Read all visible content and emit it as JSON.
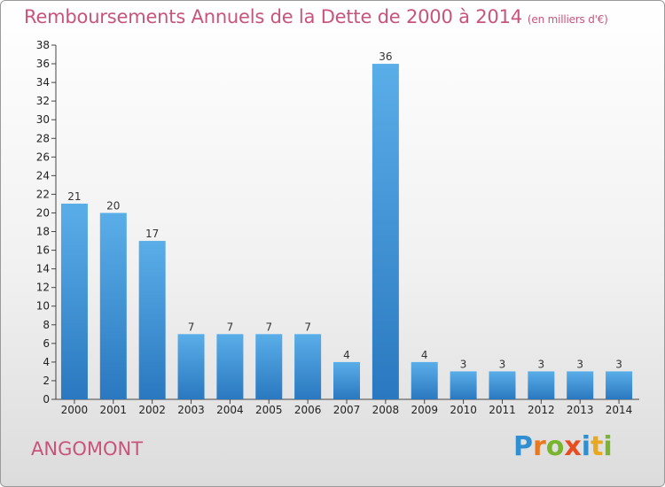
{
  "title": "Remboursements Annuels de la Dette de 2000 à 2014",
  "unit_note": "(en milliers d'€)",
  "commune": "ANGOMONT",
  "logo": {
    "text": "Proxiti",
    "letters": [
      {
        "ch": "P",
        "color": "#2f8fd0"
      },
      {
        "ch": "r",
        "color": "#e8781f"
      },
      {
        "ch": "o",
        "color": "#79b52e"
      },
      {
        "ch": "x",
        "color": "#e84c1f"
      },
      {
        "ch": "i",
        "color": "#2f8fd0"
      },
      {
        "ch": "t",
        "color": "#e8a81f"
      },
      {
        "ch": "i",
        "color": "#79b52e"
      }
    ]
  },
  "chart_data": {
    "type": "bar",
    "categories": [
      "2000",
      "2001",
      "2002",
      "2003",
      "2004",
      "2005",
      "2006",
      "2007",
      "2008",
      "2009",
      "2010",
      "2011",
      "2012",
      "2013",
      "2014"
    ],
    "values": [
      21,
      20,
      17,
      7,
      7,
      7,
      7,
      4,
      36,
      4,
      3,
      3,
      3,
      3,
      3
    ],
    "data_labels": [
      "21",
      "20",
      "17",
      "7",
      "7",
      "7",
      "7",
      "4",
      "36",
      "4",
      "3",
      "3",
      "3",
      "3",
      "3"
    ],
    "y_ticks": [
      "0",
      "2",
      "4",
      "6",
      "8",
      "10",
      "12",
      "14",
      "16",
      "18",
      "20",
      "22",
      "24",
      "26",
      "28",
      "30",
      "32",
      "34",
      "36",
      "38"
    ],
    "ylim": [
      0,
      38
    ],
    "grid": false,
    "colors": {
      "bar_light": "#5aaee8",
      "bar_dark": "#2a78c0",
      "axis": "#444444",
      "text": "#c8547a"
    }
  }
}
